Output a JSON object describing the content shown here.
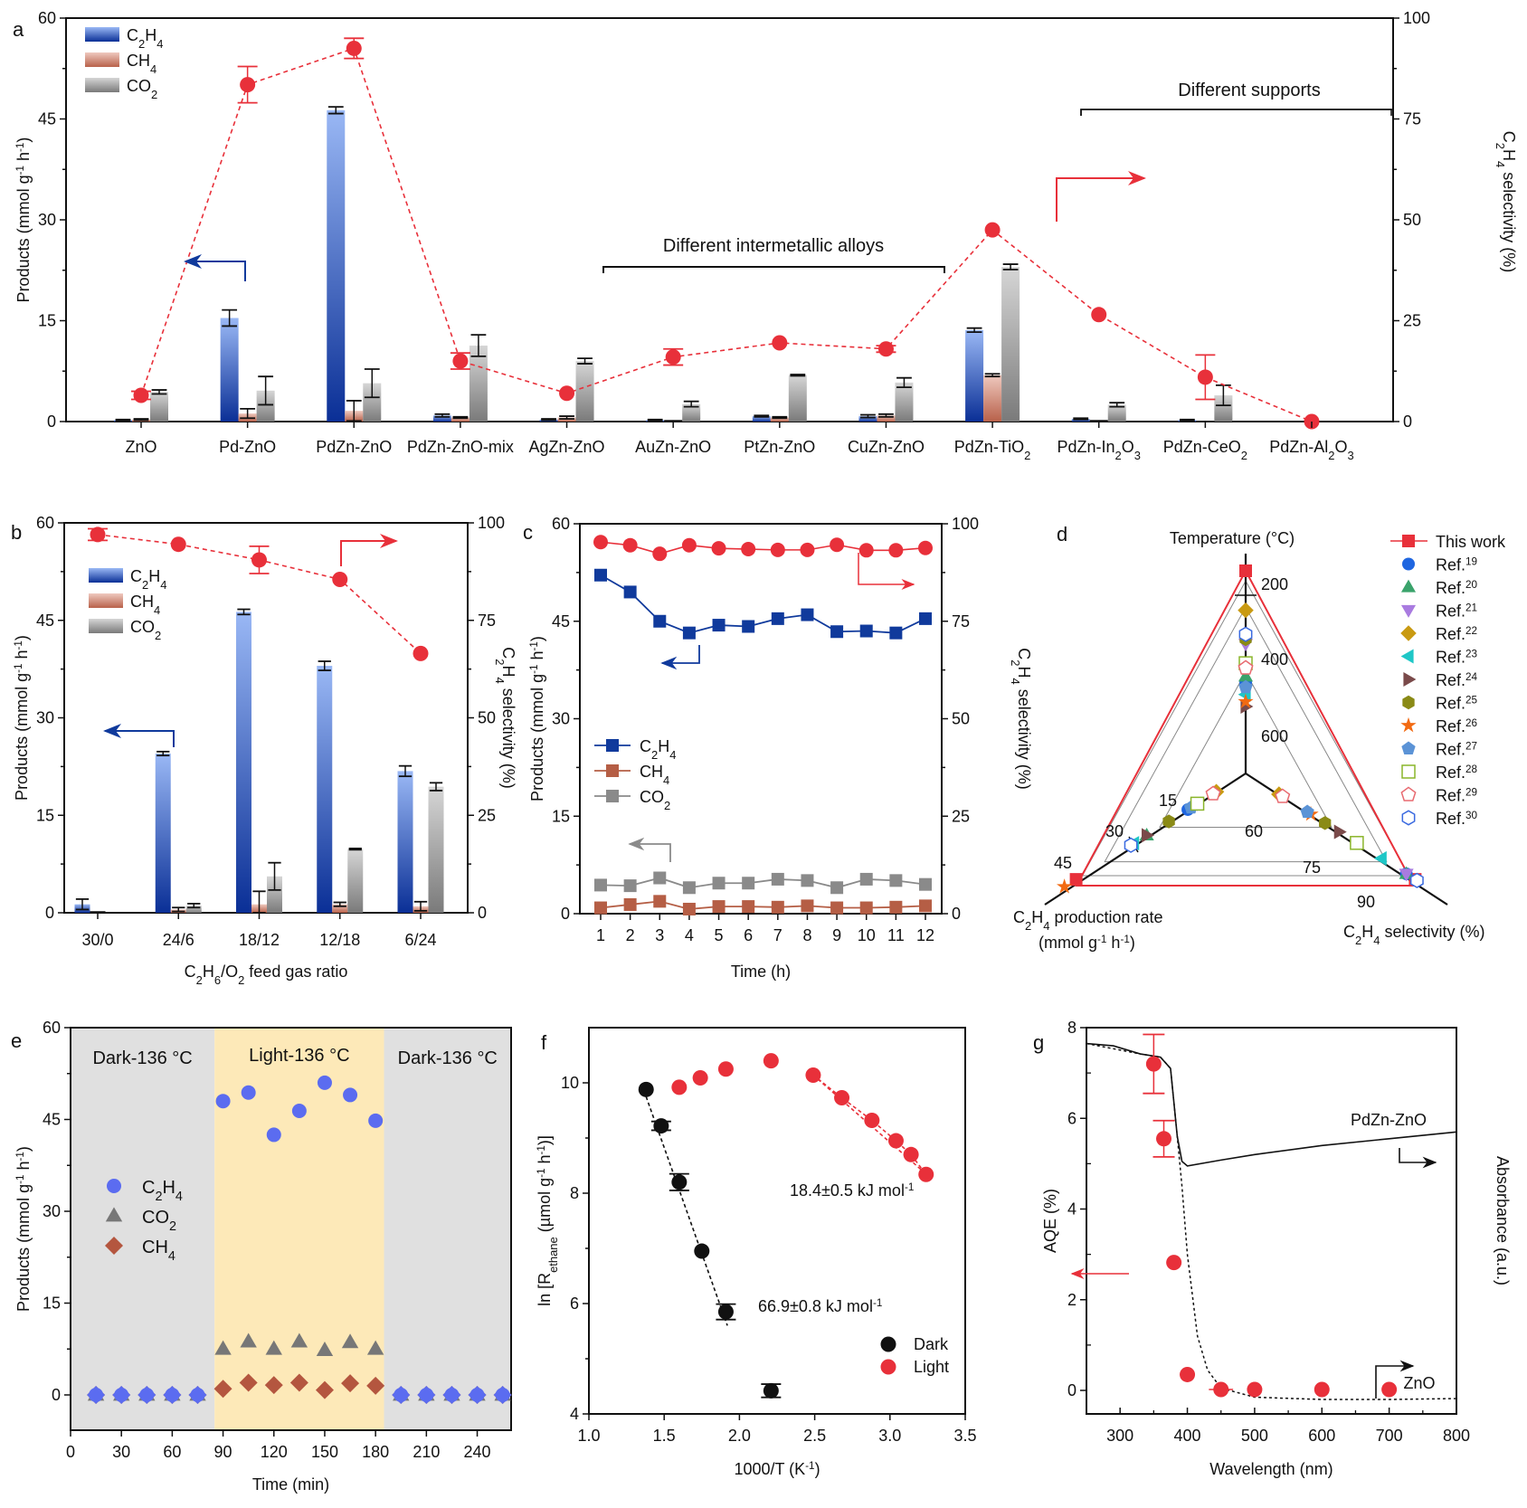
{
  "panels": {
    "a": {
      "letter": "a"
    },
    "b": {
      "letter": "b"
    },
    "c": {
      "letter": "c"
    },
    "d": {
      "letter": "d"
    },
    "e": {
      "letter": "e"
    },
    "f": {
      "letter": "f"
    },
    "g": {
      "letter": "g"
    }
  },
  "colors": {
    "c2h4_dark": "#0a2f96",
    "c2h4_light": "#9ab8f5",
    "ch4_dark": "#b8614a",
    "ch4_light": "#efc9bf",
    "co2_dark": "#7a7a7a",
    "co2_light": "#d6d6d6",
    "selectivity": "#e8303a",
    "line_c2h4": "#103a9c",
    "line_ch4": "#b55e45",
    "line_co2": "#8a8a8a",
    "dark_band": "#e0e0e0",
    "light_band": "#fde9b8",
    "e_c2h4": "#5b6cf0",
    "e_co2": "#777777",
    "e_ch4": "#b4563f"
  },
  "chart_data": [
    {
      "id": "a",
      "type": "bar",
      "categories": [
        "ZnO",
        "Pd-ZnO",
        "PdZn-ZnO",
        "PdZn-ZnO-mix",
        "AgZn-ZnO",
        "AuZn-ZnO",
        "PtZn-ZnO",
        "CuZn-ZnO",
        "PdZn-TiO2",
        "PdZn-In2O3",
        "PdZn-CeO2",
        "PdZn-Al2O3"
      ],
      "category_labels": [
        {
          "main": "ZnO"
        },
        {
          "main": "Pd-ZnO"
        },
        {
          "main": "PdZn-ZnO"
        },
        {
          "main": "PdZn-ZnO-mix"
        },
        {
          "main": "AgZn-ZnO"
        },
        {
          "main": "AuZn-ZnO"
        },
        {
          "main": "PtZn-ZnO"
        },
        {
          "main": "CuZn-ZnO"
        },
        {
          "main": "PdZn-TiO",
          "sub": "2"
        },
        {
          "main": "PdZn-In",
          "sub": "2",
          "main2": "O",
          "sub2": "3"
        },
        {
          "main": "PdZn-CeO",
          "sub": "2"
        },
        {
          "main": "PdZn-Al",
          "sub": "2",
          "main2": "O",
          "sub2": "3"
        }
      ],
      "series": [
        {
          "name": "C2H4",
          "values": [
            0.2,
            15.4,
            46.3,
            0.9,
            0.3,
            0.2,
            0.8,
            0.8,
            13.6,
            0.4,
            0.2,
            0.0
          ],
          "errors": [
            0.1,
            1.2,
            0.5,
            0.2,
            0.1,
            0.1,
            0.1,
            0.2,
            0.3,
            0.1,
            0.1,
            0.0
          ]
        },
        {
          "name": "CH4",
          "values": [
            0.3,
            1.2,
            1.6,
            0.6,
            0.6,
            0.1,
            0.6,
            0.9,
            6.9,
            0.1,
            0.0,
            0.0
          ],
          "errors": [
            0.1,
            0.7,
            1.5,
            0.1,
            0.2,
            0.0,
            0.1,
            0.2,
            0.2,
            0.0,
            0.0,
            0.0
          ]
        },
        {
          "name": "CO2",
          "values": [
            4.4,
            4.6,
            5.7,
            11.3,
            9.0,
            2.6,
            6.9,
            5.8,
            23.0,
            2.5,
            3.9,
            0.0
          ],
          "errors": [
            0.3,
            2.1,
            2.1,
            1.6,
            0.4,
            0.4,
            0.1,
            0.7,
            0.4,
            0.3,
            1.5,
            0.0
          ]
        }
      ],
      "selectivity": {
        "values": [
          6.5,
          83.5,
          92.5,
          15.0,
          7.0,
          16.0,
          19.5,
          18.0,
          47.5,
          26.5,
          11.0,
          0.0
        ],
        "errors": [
          1.0,
          4.5,
          2.5,
          2.0,
          0.5,
          2.0,
          0.5,
          0.8,
          0.5,
          0.5,
          5.5,
          0.0
        ]
      },
      "ylabel": "Products (mmol g-1 h-1)",
      "y2label": "C2H4 selectivity (%)",
      "ylim": [
        0,
        60
      ],
      "yticks": [
        0,
        15,
        30,
        45,
        60
      ],
      "y2lim": [
        0,
        100
      ],
      "y2ticks": [
        0,
        25,
        50,
        75,
        100
      ],
      "legend": [
        "C2H4",
        "CH4",
        "CO2"
      ],
      "legend_position": "top-left",
      "annotations": [
        "Different intermetallic alloys",
        "Different supports"
      ]
    },
    {
      "id": "b",
      "type": "bar",
      "categories": [
        "30/0",
        "24/6",
        "18/12",
        "12/18",
        "6/24"
      ],
      "series": [
        {
          "name": "C2H4",
          "values": [
            1.3,
            24.5,
            46.3,
            38.0,
            21.8
          ],
          "errors": [
            0.8,
            0.3,
            0.4,
            0.7,
            0.8
          ]
        },
        {
          "name": "CH4",
          "values": [
            0.1,
            0.5,
            1.3,
            1.3,
            1.0
          ],
          "errors": [
            0.0,
            0.3,
            2.0,
            0.3,
            0.7
          ]
        },
        {
          "name": "CO2",
          "values": [
            0.0,
            1.1,
            5.6,
            9.8,
            19.4
          ],
          "errors": [
            0.0,
            0.3,
            2.1,
            0.1,
            0.6
          ]
        }
      ],
      "selectivity": {
        "values": [
          97.0,
          94.5,
          90.5,
          85.5,
          66.5
        ],
        "errors": [
          1.5,
          0.5,
          3.5,
          0.5,
          0.5
        ]
      },
      "xlabel": "C2H6/O2 feed gas ratio",
      "ylabel": "Products (mmol g-1 h-1)",
      "y2label": "C2H4 selectivity (%)",
      "ylim": [
        0,
        60
      ],
      "yticks": [
        0,
        15,
        30,
        45,
        60
      ],
      "y2lim": [
        0,
        100
      ],
      "y2ticks": [
        0,
        25,
        50,
        75,
        100
      ],
      "legend": [
        "C2H4",
        "CH4",
        "CO2"
      ],
      "legend_position": "top-left"
    },
    {
      "id": "c",
      "type": "line",
      "x": [
        1,
        2,
        3,
        4,
        5,
        6,
        7,
        8,
        9,
        10,
        11,
        12
      ],
      "series": [
        {
          "name": "C2H4",
          "values": [
            52.1,
            49.5,
            45.0,
            43.2,
            44.4,
            44.2,
            45.4,
            46.0,
            43.4,
            43.5,
            43.2,
            45.4
          ]
        },
        {
          "name": "CH4",
          "values": [
            0.9,
            1.4,
            1.9,
            0.7,
            1.1,
            1.1,
            1.0,
            1.2,
            0.9,
            0.9,
            1.0,
            1.2
          ]
        },
        {
          "name": "CO2",
          "values": [
            4.4,
            4.3,
            5.5,
            4.0,
            4.7,
            4.7,
            5.3,
            5.1,
            4.0,
            5.3,
            5.1,
            4.5
          ]
        }
      ],
      "selectivity": {
        "values": [
          95.3,
          94.5,
          92.3,
          94.5,
          93.7,
          93.5,
          93.3,
          93.3,
          94.6,
          93.2,
          93.2,
          93.8
        ]
      },
      "xlabel": "Time (h)",
      "ylabel": "Products (mmol g-1 h-1)",
      "y2label": "C2H4 selectivity (%)",
      "ylim": [
        0,
        60
      ],
      "yticks": [
        0,
        15,
        30,
        45,
        60
      ],
      "y2lim": [
        0,
        100
      ],
      "y2ticks": [
        0,
        25,
        50,
        75,
        100
      ],
      "legend": [
        "C2H4",
        "CH4",
        "CO2"
      ],
      "legend_position": "center-left"
    },
    {
      "id": "d",
      "type": "scatter",
      "subtype": "radar-triangle",
      "axes": [
        {
          "label": "Temperature (°C)",
          "ticks": [
            200,
            400,
            600
          ],
          "position": "top"
        },
        {
          "label": "C2H4 production rate (mmol g-1 h-1)",
          "ticks": [
            15,
            30,
            45
          ],
          "position": "bottom-left"
        },
        {
          "label": "C2H4 selectivity (%)",
          "ticks": [
            60,
            75,
            90
          ],
          "position": "bottom-right"
        }
      ],
      "legend": [
        {
          "name": "This work",
          "marker": "square",
          "color": "#e8303a",
          "ref": ""
        },
        {
          "name": "Ref.",
          "ref": "19",
          "marker": "circle",
          "color": "#1f66e0"
        },
        {
          "name": "Ref.",
          "ref": "20",
          "marker": "triangle-up",
          "color": "#3aa36b"
        },
        {
          "name": "Ref.",
          "ref": "21",
          "marker": "triangle-down",
          "color": "#a97be0"
        },
        {
          "name": "Ref.",
          "ref": "22",
          "marker": "diamond",
          "color": "#c99a12"
        },
        {
          "name": "Ref.",
          "ref": "23",
          "marker": "triangle-left",
          "color": "#1fc7c7"
        },
        {
          "name": "Ref.",
          "ref": "24",
          "marker": "triangle-right",
          "color": "#7a4a4a"
        },
        {
          "name": "Ref.",
          "ref": "25",
          "marker": "hexagon",
          "color": "#8a8a16"
        },
        {
          "name": "Ref.",
          "ref": "26",
          "marker": "star",
          "color": "#f26a12"
        },
        {
          "name": "Ref.",
          "ref": "27",
          "marker": "pentagon",
          "color": "#5b93d6"
        },
        {
          "name": "Ref.",
          "ref": "28",
          "marker": "square-open",
          "color": "#8ab52a"
        },
        {
          "name": "Ref.",
          "ref": "29",
          "marker": "pentagon-open",
          "color": "#e86a70"
        },
        {
          "name": "Ref.",
          "ref": "30",
          "marker": "hexagon-open",
          "color": "#3a6ae0"
        }
      ],
      "points": [
        {
          "ref": "This work",
          "temperature": 136,
          "rate": 46.3,
          "selectivity": 92.5
        },
        {
          "ref": "19",
          "temperature": 600,
          "rate": 11,
          "selectivity": 90
        },
        {
          "ref": "20",
          "temperature": 575,
          "rate": 24,
          "selectivity": 90
        },
        {
          "ref": "21",
          "temperature": 440,
          "rate": 8,
          "selectivity": 90
        },
        {
          "ref": "22",
          "temperature": 300,
          "rate": 2,
          "selectivity": 54
        },
        {
          "ref": "23",
          "temperature": 650,
          "rate": 28,
          "selectivity": 83
        },
        {
          "ref": "24",
          "temperature": 700,
          "rate": 24,
          "selectivity": 71
        },
        {
          "ref": "25",
          "temperature": 420,
          "rate": 17,
          "selectivity": 67
        },
        {
          "ref": "26",
          "temperature": 680,
          "rate": 50,
          "selectivity": 63
        },
        {
          "ref": "27",
          "temperature": 620,
          "rate": 10,
          "selectivity": 62
        },
        {
          "ref": "28",
          "temperature": 520,
          "rate": 8,
          "selectivity": 76
        },
        {
          "ref": "29",
          "temperature": 540,
          "rate": 3,
          "selectivity": 55
        },
        {
          "ref": "30",
          "temperature": 400,
          "rate": 29,
          "selectivity": 93
        }
      ]
    },
    {
      "id": "e",
      "type": "scatter",
      "series": [
        {
          "name": "C2H4",
          "x": [
            15,
            30,
            45,
            60,
            75,
            90,
            105,
            120,
            135,
            150,
            165,
            180,
            195,
            210,
            225,
            240,
            255
          ],
          "values": [
            0,
            0,
            0,
            0,
            0,
            48.0,
            49.4,
            42.5,
            46.4,
            51.0,
            49.0,
            44.8,
            0,
            0,
            0,
            0,
            0
          ]
        },
        {
          "name": "CO2",
          "x": [
            15,
            30,
            45,
            60,
            75,
            90,
            105,
            120,
            135,
            150,
            165,
            180,
            195,
            210,
            225,
            240,
            255
          ],
          "values": [
            0,
            0,
            0,
            0,
            0,
            7.5,
            8.7,
            7.5,
            8.7,
            7.3,
            8.6,
            7.5,
            0,
            0,
            0,
            0,
            0
          ]
        },
        {
          "name": "CH4",
          "x": [
            15,
            30,
            45,
            60,
            75,
            90,
            105,
            120,
            135,
            150,
            165,
            180,
            195,
            210,
            225,
            240,
            255
          ],
          "values": [
            0,
            0,
            0,
            0,
            0,
            1.0,
            2.0,
            1.6,
            2.0,
            0.8,
            1.9,
            1.5,
            0,
            0,
            0,
            0,
            0
          ]
        }
      ],
      "regions": [
        {
          "label": "Dark-136 °C",
          "from": 0,
          "to": 85
        },
        {
          "label": "Light-136 °C",
          "from": 85,
          "to": 185
        },
        {
          "label": "Dark-136 °C",
          "from": 185,
          "to": 260
        }
      ],
      "xlabel": "Time (min)",
      "ylabel": "Products (mmol g-1 h-1)",
      "xlim": [
        0,
        260
      ],
      "xticks": [
        0,
        30,
        60,
        90,
        120,
        150,
        180,
        210,
        240
      ],
      "ylim": [
        -3,
        60
      ],
      "yticks": [
        0,
        15,
        30,
        45,
        60
      ],
      "legend": [
        "C2H4",
        "CO2",
        "CH4"
      ],
      "legend_position": "center-left"
    },
    {
      "id": "f",
      "type": "scatter",
      "series": [
        {
          "name": "Dark",
          "x": [
            1.38,
            1.48,
            1.6,
            1.75,
            1.91,
            2.21
          ],
          "values": [
            9.88,
            9.22,
            8.2,
            6.95,
            5.85,
            4.42
          ],
          "errors": [
            0.05,
            0.08,
            0.15,
            0.05,
            0.14,
            0.12
          ]
        },
        {
          "name": "Light",
          "x": [
            1.6,
            1.74,
            1.91,
            2.21,
            2.49,
            2.68,
            2.88,
            3.04,
            3.14,
            3.24
          ],
          "values": [
            9.92,
            10.09,
            10.25,
            10.4,
            10.14,
            9.73,
            9.32,
            8.95,
            8.7,
            8.34
          ],
          "errors": [
            0.05,
            0.05,
            0.05,
            0.05,
            0.05,
            0.05,
            0.05,
            0.05,
            0.05,
            0.05
          ]
        }
      ],
      "fits": [
        {
          "series": "Dark",
          "x": [
            1.38,
            1.92
          ],
          "y": [
            9.75,
            5.6
          ],
          "label": "66.9±0.8 kJ mol-1"
        },
        {
          "series": "Light",
          "x": [
            2.49,
            3.26
          ],
          "y": [
            10.14,
            8.3
          ],
          "label": "18.4±0.5 kJ mol-1"
        }
      ],
      "xlabel": "1000/T (K-1)",
      "ylabel": "ln [R_ethane (µmol g-1 h-1)]",
      "xlim": [
        1.0,
        3.5
      ],
      "xticks": [
        1.0,
        1.5,
        2.0,
        2.5,
        3.0,
        3.5
      ],
      "ylim": [
        4,
        11
      ],
      "yticks": [
        4,
        6,
        8,
        10
      ],
      "legend": [
        "Dark",
        "Light"
      ],
      "legend_position": "bottom-right"
    },
    {
      "id": "g",
      "type": "scatter",
      "series": [
        {
          "name": "AQE",
          "x": [
            350,
            365,
            380,
            400,
            450,
            500,
            600,
            700
          ],
          "values": [
            7.2,
            5.55,
            2.82,
            0.35,
            0.02,
            0.02,
            0.02,
            0.02
          ],
          "errors": [
            0.65,
            0.4,
            0.05,
            0.05,
            0.02,
            0.0,
            0.0,
            0.0
          ],
          "xerrors": [
            0,
            0,
            8,
            8,
            18,
            0,
            0,
            0
          ]
        },
        {
          "name": "PdZn-ZnO absorbance",
          "x": [
            250,
            290,
            330,
            360,
            375,
            385,
            392,
            400,
            450,
            500,
            600,
            700,
            800
          ],
          "values": [
            7.65,
            7.6,
            7.42,
            7.35,
            7.1,
            5.6,
            5.05,
            4.95,
            5.08,
            5.2,
            5.4,
            5.55,
            5.7
          ]
        },
        {
          "name": "ZnO absorbance",
          "x": [
            250,
            330,
            360,
            375,
            385,
            392,
            400,
            415,
            430,
            450,
            500,
            600,
            700,
            800
          ],
          "values": [
            7.65,
            7.42,
            7.35,
            7.1,
            5.6,
            4.5,
            3.0,
            1.2,
            0.45,
            0.05,
            -0.15,
            -0.2,
            -0.2,
            -0.18
          ]
        }
      ],
      "labels": [
        "PdZn-ZnO",
        "ZnO"
      ],
      "xlabel": "Wavelength (nm)",
      "ylabel": "AQE (%)",
      "y2label": "Absorbance (a.u.)",
      "xlim": [
        250,
        800
      ],
      "xticks": [
        300,
        400,
        500,
        600,
        700,
        800
      ],
      "ylim": [
        -0.5,
        8
      ],
      "yticks": [
        0,
        2,
        4,
        6,
        8
      ]
    }
  ]
}
